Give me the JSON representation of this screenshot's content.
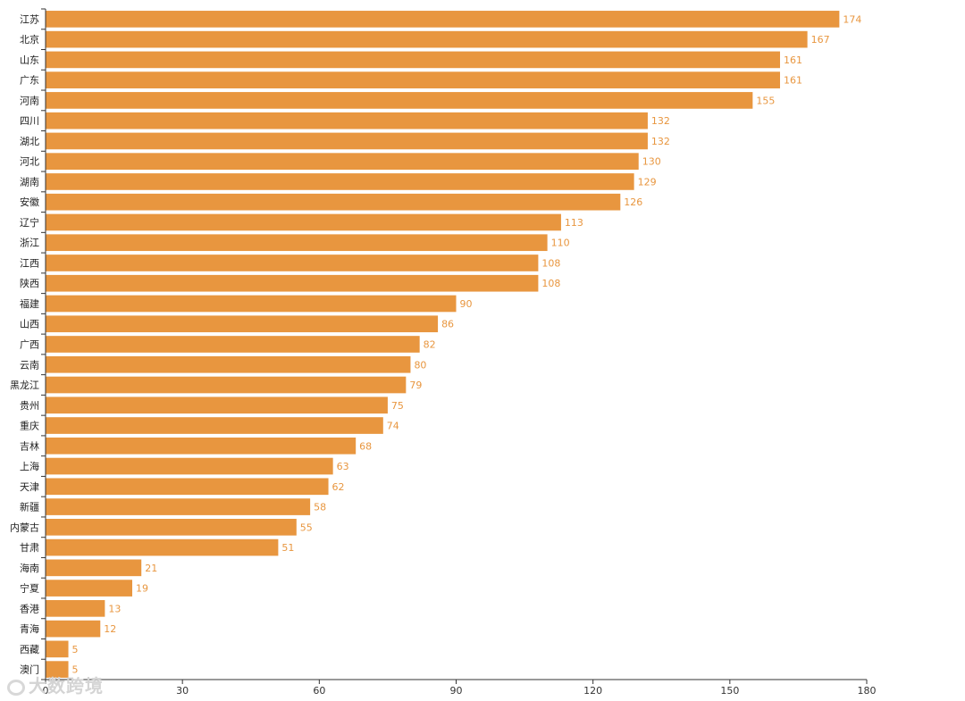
{
  "chart_data": {
    "type": "bar",
    "orientation": "horizontal",
    "categories": [
      "江苏",
      "北京",
      "山东",
      "广东",
      "河南",
      "四川",
      "湖北",
      "河北",
      "湖南",
      "安徽",
      "辽宁",
      "浙江",
      "江西",
      "陕西",
      "福建",
      "山西",
      "广西",
      "云南",
      "黑龙江",
      "贵州",
      "重庆",
      "吉林",
      "上海",
      "天津",
      "新疆",
      "内蒙古",
      "甘肃",
      "海南",
      "宁夏",
      "香港",
      "青海",
      "西藏",
      "澳门"
    ],
    "values": [
      174,
      167,
      161,
      161,
      155,
      132,
      132,
      130,
      129,
      126,
      113,
      110,
      108,
      108,
      90,
      86,
      82,
      80,
      79,
      75,
      74,
      68,
      63,
      62,
      58,
      55,
      51,
      21,
      19,
      13,
      12,
      5,
      5
    ],
    "xlim": [
      0,
      180
    ],
    "xticks": [
      0,
      30,
      60,
      90,
      120,
      150,
      180
    ],
    "title": "",
    "xlabel": "",
    "ylabel": "",
    "bar_color": "#e8963f",
    "label_color": "#e8963f",
    "grid": false,
    "legend": "none"
  },
  "watermark": {
    "text": "大数跨境",
    "icon": "watermark-logo-icon"
  }
}
